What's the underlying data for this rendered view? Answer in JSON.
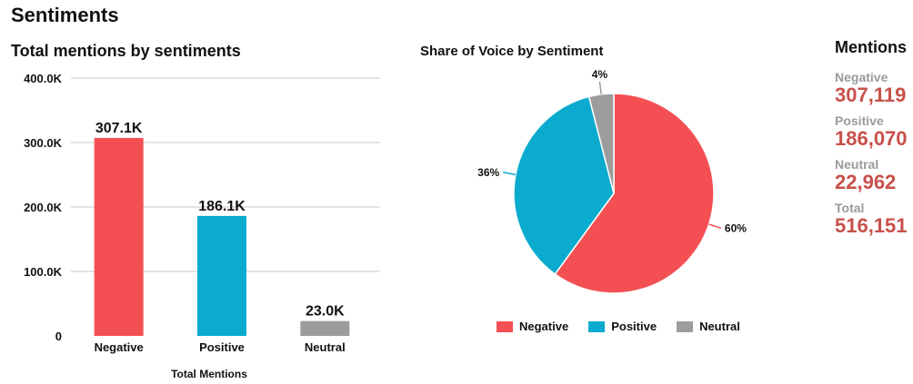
{
  "page": {
    "title": "Sentiments"
  },
  "colors": {
    "negative": "#f45053",
    "positive": "#0aabce",
    "neutral": "#9c9c9c",
    "grid": "#c9c9c9",
    "accent_text": "#c8504a"
  },
  "chart_data": [
    {
      "type": "bar",
      "title": "Total mentions by sentiments",
      "xlabel": "Total Mentions",
      "ylabel": "",
      "categories": [
        "Negative",
        "Positive",
        "Neutral"
      ],
      "values": [
        307.1,
        186.1,
        23.0
      ],
      "data_labels": [
        "307.1K",
        "186.1K",
        "23.0K"
      ],
      "ylim": [
        0,
        400
      ],
      "yticks": [
        0,
        100,
        200,
        300,
        400
      ],
      "ytick_labels": [
        "0",
        "100.0K",
        "200.0K",
        "300.0K",
        "400.0K"
      ],
      "grid": true,
      "bar_colors": [
        "#f45053",
        "#0aabce",
        "#9c9c9c"
      ]
    },
    {
      "type": "pie",
      "title": "Share of Voice by Sentiment",
      "categories": [
        "Negative",
        "Positive",
        "Neutral"
      ],
      "values": [
        60,
        36,
        4
      ],
      "data_labels": [
        "60%",
        "36%",
        "4%"
      ],
      "colors": [
        "#f45053",
        "#0aabce",
        "#9c9c9c"
      ],
      "legend": "bottom"
    }
  ],
  "mentions": {
    "title": "Mentions",
    "items": [
      {
        "label": "Negative",
        "value": "307,119"
      },
      {
        "label": "Positive",
        "value": "186,070"
      },
      {
        "label": "Neutral",
        "value": "22,962"
      },
      {
        "label": "Total",
        "value": "516,151"
      }
    ]
  }
}
